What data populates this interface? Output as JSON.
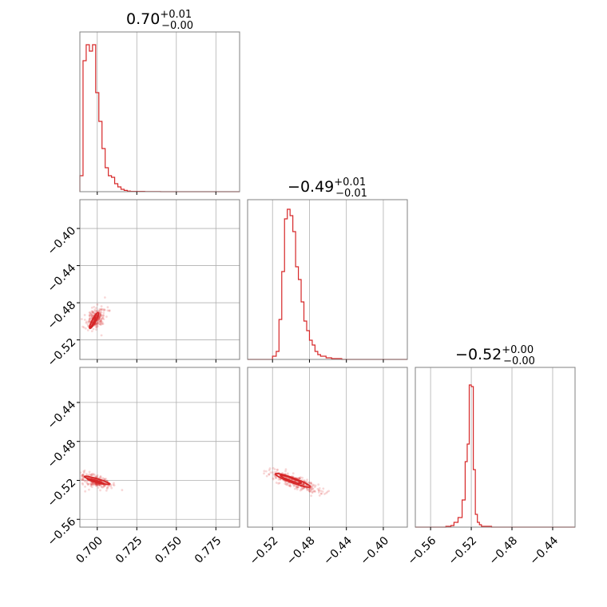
{
  "colors": {
    "series": "#d62728",
    "grid": "#b0b0b0",
    "frame": "#808080"
  },
  "titles": [
    {
      "value": "0.70",
      "sup": "+0.01",
      "sub": "−0.00"
    },
    {
      "value": "−0.49",
      "sup": "+0.01",
      "sub": "−0.01"
    },
    {
      "value": "−0.52",
      "sup": "+0.00",
      "sub": "−0.00"
    }
  ],
  "chart_data": [
    {
      "type": "histogram",
      "panel": "p00",
      "parameter_index": 0,
      "xlim": [
        0.689,
        0.79
      ],
      "xticks": [
        0.7,
        0.725,
        0.75,
        0.775
      ],
      "bins": [
        [
          0.689,
          0.1
        ],
        [
          0.691,
          0.82
        ],
        [
          0.693,
          0.92
        ],
        [
          0.695,
          0.88
        ],
        [
          0.697,
          0.92
        ],
        [
          0.699,
          0.62
        ],
        [
          0.701,
          0.44
        ],
        [
          0.703,
          0.27
        ],
        [
          0.705,
          0.15
        ],
        [
          0.707,
          0.1
        ],
        [
          0.709,
          0.09
        ],
        [
          0.711,
          0.05
        ],
        [
          0.713,
          0.03
        ],
        [
          0.715,
          0.015
        ],
        [
          0.717,
          0.008
        ],
        [
          0.719,
          0.004
        ],
        [
          0.721,
          0.002
        ],
        [
          0.723,
          0.002
        ],
        [
          0.73,
          0.001
        ],
        [
          0.74,
          0.0
        ],
        [
          0.79,
          0.0
        ]
      ]
    },
    {
      "type": "scatter",
      "panel": "p10",
      "x_parameter": 0,
      "y_parameter": 1,
      "xlim": [
        0.689,
        0.79
      ],
      "ylim": [
        -0.541,
        -0.369
      ],
      "yticks": [
        -0.4,
        -0.44,
        -0.48,
        -0.52
      ],
      "yticklabels": [
        "−0.40",
        "−0.44",
        "−0.48",
        "−0.52"
      ],
      "center": [
        0.699,
        -0.497
      ],
      "spread_along": 0.006,
      "spread_across": 0.0025,
      "slope": 3.3,
      "n_points": 260,
      "contours": [
        {
          "center": [
            0.698,
            -0.499
          ],
          "half_length": 0.009,
          "half_width": 0.0012
        },
        {
          "center": [
            0.697,
            -0.501
          ],
          "half_length": 0.006,
          "half_width": 0.0008
        }
      ]
    },
    {
      "type": "histogram",
      "panel": "p11",
      "parameter_index": 1,
      "xlim": [
        -0.547,
        -0.374
      ],
      "xticks": [
        -0.52,
        -0.48,
        -0.44,
        -0.4
      ],
      "xticklabels": [
        "−0.52",
        "−0.48",
        "−0.44",
        "−0.40"
      ],
      "bins": [
        [
          -0.547,
          0.0
        ],
        [
          -0.52,
          0.02
        ],
        [
          -0.516,
          0.05
        ],
        [
          -0.513,
          0.25
        ],
        [
          -0.51,
          0.55
        ],
        [
          -0.507,
          0.88
        ],
        [
          -0.504,
          0.94
        ],
        [
          -0.501,
          0.9
        ],
        [
          -0.498,
          0.8
        ],
        [
          -0.495,
          0.58
        ],
        [
          -0.492,
          0.5
        ],
        [
          -0.489,
          0.36
        ],
        [
          -0.486,
          0.24
        ],
        [
          -0.483,
          0.18
        ],
        [
          -0.48,
          0.12
        ],
        [
          -0.477,
          0.09
        ],
        [
          -0.474,
          0.05
        ],
        [
          -0.471,
          0.03
        ],
        [
          -0.468,
          0.02
        ],
        [
          -0.462,
          0.01
        ],
        [
          -0.456,
          0.005
        ],
        [
          -0.445,
          0.0
        ],
        [
          -0.374,
          0.0
        ]
      ]
    },
    {
      "type": "scatter",
      "panel": "p20",
      "x_parameter": 0,
      "y_parameter": 2,
      "xlim": [
        0.689,
        0.79
      ],
      "ylim": [
        -0.568,
        -0.404
      ],
      "yticks": [
        -0.44,
        -0.48,
        -0.52,
        -0.56
      ],
      "yticklabels": [
        "−0.44",
        "−0.48",
        "−0.52",
        "−0.56"
      ],
      "center": [
        0.699,
        -0.521
      ],
      "spread_along": 0.006,
      "spread_across": 0.003,
      "slope": -0.5,
      "n_points": 240,
      "contours": [
        {
          "center": [
            0.7,
            -0.52
          ],
          "half_length": 0.009,
          "half_width": 0.0015
        },
        {
          "center": [
            0.699,
            -0.521
          ],
          "half_length": 0.006,
          "half_width": 0.0009
        }
      ]
    },
    {
      "type": "scatter",
      "panel": "p21",
      "x_parameter": 1,
      "y_parameter": 2,
      "xlim": [
        -0.547,
        -0.374
      ],
      "ylim": [
        -0.568,
        -0.404
      ],
      "center": [
        -0.496,
        -0.521
      ],
      "spread_along": 0.014,
      "spread_across": 0.003,
      "slope": -0.35,
      "n_points": 320,
      "contours": [
        {
          "center": [
            -0.498,
            -0.52
          ],
          "half_length": 0.02,
          "half_width": 0.0025
        },
        {
          "center": [
            -0.5,
            -0.519
          ],
          "half_length": 0.012,
          "half_width": 0.0014
        }
      ]
    },
    {
      "type": "histogram",
      "panel": "p22",
      "parameter_index": 2,
      "xlim": [
        -0.575,
        -0.418
      ],
      "xticks": [
        -0.56,
        -0.52,
        -0.48,
        -0.44
      ],
      "xticklabels": [
        "−0.56",
        "−0.52",
        "−0.48",
        "−0.44"
      ],
      "bins": [
        [
          -0.575,
          0.0
        ],
        [
          -0.545,
          0.005
        ],
        [
          -0.54,
          0.01
        ],
        [
          -0.537,
          0.03
        ],
        [
          -0.533,
          0.06
        ],
        [
          -0.529,
          0.17
        ],
        [
          -0.526,
          0.41
        ],
        [
          -0.524,
          0.52
        ],
        [
          -0.522,
          0.89
        ],
        [
          -0.52,
          0.88
        ],
        [
          -0.518,
          0.36
        ],
        [
          -0.516,
          0.08
        ],
        [
          -0.514,
          0.03
        ],
        [
          -0.512,
          0.015
        ],
        [
          -0.51,
          0.005
        ],
        [
          -0.5,
          0.0
        ],
        [
          -0.418,
          0.0
        ]
      ]
    }
  ]
}
